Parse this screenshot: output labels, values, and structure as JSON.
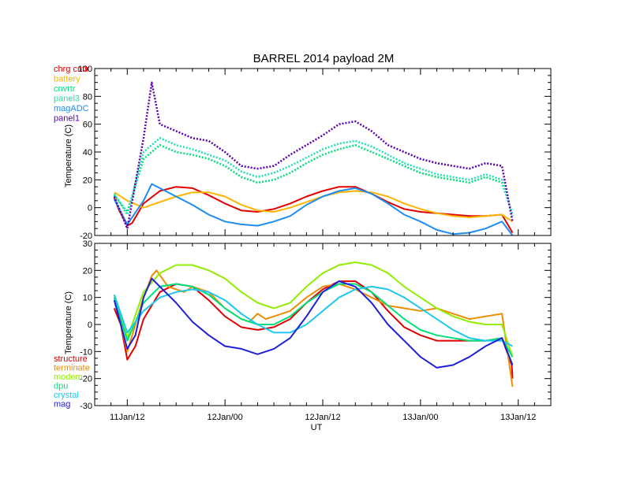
{
  "title": "BARREL 2014 payload 2M",
  "x_tick_labels": [
    "11Jan/12",
    "12Jan/00",
    "12Jan/12",
    "13Jan/00",
    "13Jan/12"
  ],
  "x_axis_label": "UT",
  "colors": {
    "red": "#e00000",
    "orange": "#f08c00",
    "yellow": "#ffb400",
    "yellowgreen": "#90ee00",
    "green": "#00e07a",
    "aqua": "#1fe0b0",
    "cyan": "#1ec8f0",
    "blue": "#1e8cf0",
    "darkblue": "#2020d8",
    "purple": "#5a00b4"
  },
  "chart_data": [
    {
      "type": "line",
      "title": "BARREL 2014 payload 2M",
      "ylabel": "Temperature (C)",
      "xlabel": "",
      "ylim": [
        -20,
        100
      ],
      "xlim": [
        -4,
        52
      ],
      "y_ticks": [
        -20,
        0,
        20,
        40,
        60,
        80,
        100
      ],
      "x_ticks_hours": [
        0,
        12,
        24,
        36,
        48
      ],
      "grid": false,
      "legend_position": "top-left",
      "series": [
        {
          "name": "chrg cntlr",
          "color": "red",
          "style": "solid",
          "x": [
            -1.6,
            -1,
            0,
            0.6,
            2,
            4,
            6,
            8,
            10,
            12,
            14,
            16,
            18,
            20,
            22,
            24,
            26,
            28,
            30,
            32,
            34,
            36,
            38,
            40,
            42,
            44,
            46,
            47.3
          ],
          "y": [
            7,
            -2,
            -13,
            -11,
            3,
            12,
            15,
            14,
            9,
            3,
            -2,
            -3,
            -1,
            3,
            8,
            12,
            15,
            15,
            10,
            4,
            -1,
            -3,
            -4,
            -5,
            -6,
            -6,
            -5,
            -18
          ]
        },
        {
          "name": "battery",
          "color": "yellow",
          "style": "solid",
          "x": [
            -1.6,
            0,
            2,
            4,
            6,
            8,
            10,
            12,
            14,
            16,
            18,
            20,
            22,
            24,
            26,
            28,
            30,
            32,
            34,
            36,
            38,
            40,
            42,
            44,
            46,
            47.3
          ],
          "y": [
            11,
            5,
            0,
            4,
            8,
            11,
            11,
            8,
            2,
            -2,
            -3,
            0,
            4,
            8,
            11,
            12,
            11,
            8,
            3,
            -1,
            -4,
            -6,
            -7,
            -6,
            -5,
            -10
          ]
        },
        {
          "name": "cnvrtr",
          "color": "green",
          "style": "dotted",
          "x": [
            -1.6,
            0,
            2,
            4,
            6,
            8,
            10,
            12,
            14,
            16,
            18,
            20,
            22,
            24,
            26,
            28,
            30,
            32,
            34,
            36,
            38,
            40,
            42,
            44,
            46,
            47.3
          ],
          "y": [
            9,
            -3,
            35,
            45,
            40,
            38,
            35,
            30,
            22,
            18,
            20,
            25,
            32,
            38,
            42,
            45,
            40,
            35,
            30,
            25,
            22,
            20,
            18,
            22,
            18,
            -5
          ]
        },
        {
          "name": "panel3",
          "color": "aqua",
          "style": "dotted",
          "x": [
            -1.6,
            0,
            2,
            4,
            6,
            8,
            10,
            12,
            14,
            16,
            18,
            20,
            22,
            24,
            26,
            28,
            30,
            32,
            34,
            36,
            38,
            40,
            42,
            44,
            46,
            47.3
          ],
          "y": [
            10,
            -5,
            40,
            50,
            45,
            42,
            38,
            34,
            26,
            22,
            25,
            30,
            36,
            42,
            46,
            48,
            44,
            38,
            32,
            28,
            24,
            22,
            20,
            24,
            20,
            -6
          ]
        },
        {
          "name": "magADC",
          "color": "blue",
          "style": "solid",
          "x": [
            -1.6,
            0,
            2,
            3,
            4,
            6,
            8,
            10,
            12,
            14,
            16,
            18,
            20,
            22,
            24,
            26,
            28,
            30,
            32,
            34,
            36,
            38,
            40,
            42,
            44,
            46,
            47.3
          ],
          "y": [
            6,
            -12,
            5,
            17,
            14,
            8,
            2,
            -5,
            -10,
            -12,
            -13,
            -10,
            -6,
            2,
            8,
            12,
            14,
            10,
            3,
            -5,
            -10,
            -16,
            -19,
            -18,
            -15,
            -10,
            -20
          ]
        },
        {
          "name": "panel1",
          "color": "purple",
          "style": "dotted",
          "x": [
            -1.6,
            0,
            2,
            3,
            4,
            6,
            8,
            10,
            12,
            14,
            16,
            18,
            20,
            22,
            24,
            26,
            28,
            30,
            32,
            34,
            36,
            38,
            40,
            42,
            44,
            46,
            47.3
          ],
          "y": [
            8,
            -15,
            50,
            90,
            60,
            55,
            50,
            48,
            40,
            30,
            28,
            30,
            38,
            45,
            52,
            60,
            62,
            55,
            45,
            40,
            35,
            32,
            30,
            28,
            32,
            30,
            -10
          ]
        }
      ]
    },
    {
      "type": "line",
      "ylabel": "Temperature (C)",
      "xlabel": "UT",
      "ylim": [
        -30,
        30
      ],
      "xlim": [
        -4,
        52
      ],
      "y_ticks": [
        -30,
        -20,
        -10,
        0,
        10,
        20,
        30
      ],
      "x_ticks_hours": [
        0,
        12,
        24,
        36,
        48
      ],
      "grid": false,
      "legend_position": "bottom-left",
      "series": [
        {
          "name": "structure",
          "color": "red",
          "style": "solid",
          "x": [
            -1.6,
            -0.8,
            0,
            1,
            2,
            4,
            6,
            8,
            10,
            12,
            14,
            16,
            18,
            20,
            22,
            24,
            26,
            28,
            30,
            32,
            34,
            36,
            38,
            40,
            42,
            44,
            46,
            47.2,
            47.3
          ],
          "y": [
            6,
            0,
            -13,
            -8,
            2,
            12,
            15,
            14,
            9,
            3,
            -1,
            -2,
            -1,
            2,
            8,
            13,
            16,
            16,
            12,
            5,
            -1,
            -4,
            -6,
            -6,
            -6,
            -6,
            -5,
            -15,
            -20
          ]
        },
        {
          "name": "terminate",
          "color": "orange",
          "style": "solid",
          "x": [
            -1.6,
            0,
            2,
            3,
            3.6,
            5,
            7,
            8,
            10,
            12,
            14,
            15,
            16,
            17,
            18,
            20,
            22,
            24,
            26,
            28,
            30,
            32,
            34,
            36,
            38,
            40,
            42,
            44,
            46,
            47.3
          ],
          "y": [
            10,
            -10,
            10,
            18,
            20,
            14,
            12,
            14,
            12,
            6,
            2,
            1,
            4,
            2,
            3,
            5,
            10,
            14,
            15,
            13,
            10,
            7,
            6,
            5,
            6,
            4,
            2,
            3,
            4,
            -23
          ]
        },
        {
          "name": "modem",
          "color": "yellowgreen",
          "style": "solid",
          "x": [
            -1.6,
            0,
            2,
            4,
            6,
            8,
            10,
            12,
            14,
            16,
            18,
            20,
            22,
            24,
            26,
            28,
            30,
            32,
            34,
            36,
            38,
            40,
            42,
            44,
            46,
            47.3
          ],
          "y": [
            11,
            -5,
            12,
            19,
            22,
            22,
            20,
            17,
            12,
            8,
            6,
            8,
            14,
            19,
            22,
            23,
            22,
            19,
            14,
            10,
            6,
            3,
            1,
            0,
            0,
            -12
          ]
        },
        {
          "name": "dpu",
          "color": "green",
          "style": "solid",
          "x": [
            -1.6,
            0,
            2,
            4,
            6,
            8,
            10,
            12,
            14,
            16,
            18,
            20,
            22,
            24,
            26,
            28,
            30,
            32,
            34,
            36,
            38,
            40,
            42,
            44,
            46,
            47.3
          ],
          "y": [
            10,
            -6,
            8,
            14,
            15,
            14,
            11,
            6,
            2,
            0,
            0,
            3,
            8,
            12,
            15,
            15,
            12,
            7,
            2,
            -2,
            -4,
            -5,
            -6,
            -6,
            -5,
            -12
          ]
        },
        {
          "name": "crystal",
          "color": "cyan",
          "style": "solid",
          "x": [
            -1.6,
            0,
            2,
            4,
            6,
            8,
            10,
            12,
            14,
            16,
            18,
            20,
            22,
            24,
            26,
            28,
            30,
            32,
            34,
            36,
            38,
            40,
            42,
            44,
            46,
            47.3
          ],
          "y": [
            11,
            -3,
            5,
            10,
            12,
            13,
            12,
            9,
            4,
            0,
            -3,
            -3,
            0,
            5,
            10,
            13,
            14,
            13,
            10,
            6,
            2,
            -2,
            -5,
            -6,
            -6,
            -8
          ]
        },
        {
          "name": "mag",
          "color": "darkblue",
          "style": "solid",
          "x": [
            -1.6,
            0,
            1,
            2,
            3,
            4,
            6,
            8,
            10,
            12,
            14,
            16,
            18,
            20,
            22,
            24,
            26,
            28,
            30,
            32,
            34,
            36,
            38,
            40,
            42,
            44,
            46,
            47.3
          ],
          "y": [
            9,
            -9,
            -4,
            10,
            17,
            14,
            8,
            1,
            -4,
            -8,
            -9,
            -11,
            -9,
            -5,
            3,
            12,
            16,
            14,
            8,
            0,
            -6,
            -12,
            -16,
            -15,
            -12,
            -8,
            -5,
            -15
          ]
        }
      ]
    }
  ]
}
